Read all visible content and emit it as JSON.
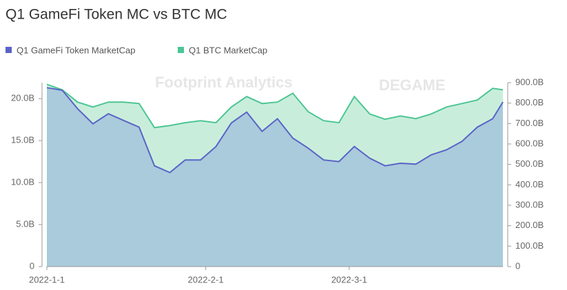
{
  "chart_data": {
    "type": "area",
    "title": "Q1 GameFi Token MC vs BTC MC",
    "watermark": [
      "Footprint Analytics",
      "DEGAME"
    ],
    "x": [
      "2022-1-1",
      "2022-1-4",
      "2022-1-7",
      "2022-1-10",
      "2022-1-13",
      "2022-1-16",
      "2022-1-19",
      "2022-1-22",
      "2022-1-25",
      "2022-1-28",
      "2022-1-31",
      "2022-2-3",
      "2022-2-6",
      "2022-2-9",
      "2022-2-12",
      "2022-2-15",
      "2022-2-18",
      "2022-2-21",
      "2022-2-24",
      "2022-2-27",
      "2022-3-2",
      "2022-3-5",
      "2022-3-8",
      "2022-3-11",
      "2022-3-14",
      "2022-3-17",
      "2022-3-20",
      "2022-3-23",
      "2022-3-26",
      "2022-3-29",
      "2022-3-31"
    ],
    "series": [
      {
        "name": "Q1 GameFi Token MarketCap",
        "color": "#5b63c7",
        "fill": "#a9cbdb",
        "axis": "y",
        "values": [
          21.3,
          21.0,
          18.8,
          17.0,
          18.2,
          17.4,
          16.6,
          12.0,
          11.2,
          12.7,
          12.7,
          14.3,
          17.1,
          18.4,
          16.1,
          17.6,
          15.3,
          14.1,
          12.7,
          12.5,
          14.3,
          12.9,
          12.0,
          12.3,
          12.2,
          13.3,
          13.9,
          14.9,
          16.6,
          17.6,
          19.6
        ]
      },
      {
        "name": "Q1 BTC MarketCap",
        "color": "#4cc594",
        "fill": "#c8eedb",
        "axis": "y2",
        "values": [
          892,
          865,
          805,
          781,
          805,
          805,
          798,
          680,
          690,
          704,
          714,
          704,
          781,
          832,
          798,
          805,
          848,
          758,
          714,
          704,
          832,
          747,
          721,
          737,
          724,
          747,
          781,
          798,
          815,
          872,
          865
        ]
      }
    ],
    "xlim": [
      "2022-1-1",
      "2022-3-31"
    ],
    "xticks": [
      "2022-1-1",
      "2022-2-1",
      "2022-3-1"
    ],
    "ylim": [
      0,
      21.9
    ],
    "yticks": [
      0,
      {
        "value": 5,
        "label": "5.0B"
      },
      {
        "value": 10,
        "label": "10.0B"
      },
      {
        "value": 15,
        "label": "15.0B"
      },
      {
        "value": 20,
        "label": "20.0B"
      }
    ],
    "y2lim": [
      0,
      900
    ],
    "y2ticks": [
      0,
      {
        "value": 100,
        "label": "100.0B"
      },
      {
        "value": 200,
        "label": "200.0B"
      },
      {
        "value": 300,
        "label": "300.0B"
      },
      {
        "value": 400,
        "label": "400.0B"
      },
      {
        "value": 500,
        "label": "500.0B"
      },
      {
        "value": 600,
        "label": "600.0B"
      },
      {
        "value": 700,
        "label": "700.0B"
      },
      {
        "value": 800,
        "label": "800.0B"
      },
      {
        "value": 900,
        "label": "900.0B"
      }
    ]
  }
}
